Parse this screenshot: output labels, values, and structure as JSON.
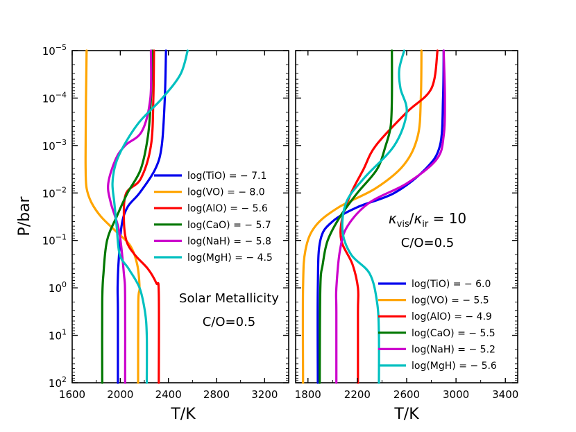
{
  "figure": {
    "ylabel": "P/bar",
    "xlabel": "T/K"
  },
  "chart_data": [
    {
      "type": "line",
      "panel": "left",
      "title": "",
      "xlabel": "T/K",
      "ylabel": "P/bar",
      "xlim": [
        1600,
        3400
      ],
      "ylim_log10": [
        2,
        -5
      ],
      "x_ticks": [
        1600,
        2000,
        2400,
        2800,
        3200
      ],
      "x_tick_labels": [
        "1600",
        "2000",
        "2400",
        "2800",
        "3200"
      ],
      "y_ticks_log10": [
        -5,
        -4,
        -3,
        -2,
        -1,
        0,
        1,
        2
      ],
      "y_tick_labels": [
        {
          "base": "10",
          "exp": "−5"
        },
        {
          "base": "10",
          "exp": "−4"
        },
        {
          "base": "10",
          "exp": "−3"
        },
        {
          "base": "10",
          "exp": "−2"
        },
        {
          "base": "10",
          "exp": "−1"
        },
        {
          "base": "10",
          "exp": "0"
        },
        {
          "base": "10",
          "exp": "1"
        },
        {
          "base": "10",
          "exp": "2"
        }
      ],
      "legend_position": "right-middle",
      "annotations": [
        "Solar Metallicity",
        "C/O=0.5"
      ],
      "series": [
        {
          "name": "log(TiO) = − 7.1",
          "color": "#0000ee",
          "points": [
            [
              2380,
              -5
            ],
            [
              2370,
              -4
            ],
            [
              2345,
              -3
            ],
            [
              2290,
              -2.5
            ],
            [
              2160,
              -2
            ],
            [
              2060,
              -1.7
            ],
            [
              2010,
              -1.3
            ],
            [
              1985,
              -0.5
            ],
            [
              1978,
              0
            ],
            [
              1980,
              0.5
            ],
            [
              1980,
              2
            ]
          ]
        },
        {
          "name": "log(VO) = − 8.0",
          "color": "#ffa500",
          "points": [
            [
              1720,
              -5
            ],
            [
              1715,
              -4
            ],
            [
              1712,
              -3
            ],
            [
              1712,
              -2.5
            ],
            [
              1720,
              -2.1
            ],
            [
              1760,
              -1.8
            ],
            [
              1840,
              -1.5
            ],
            [
              1960,
              -1.2
            ],
            [
              2080,
              -0.9
            ],
            [
              2140,
              -0.5
            ],
            [
              2160,
              0
            ],
            [
              2150,
              0.3
            ],
            [
              2148,
              2
            ]
          ]
        },
        {
          "name": "log(AlO) = − 5.6",
          "color": "#ff0000",
          "points": [
            [
              2280,
              -5
            ],
            [
              2275,
              -4
            ],
            [
              2255,
              -3
            ],
            [
              2170,
              -2.3
            ],
            [
              2050,
              -2
            ],
            [
              2030,
              -1.5
            ],
            [
              2050,
              -1
            ],
            [
              2120,
              -0.7
            ],
            [
              2230,
              -0.4
            ],
            [
              2300,
              -0.1
            ],
            [
              2320,
              0.1
            ],
            [
              2320,
              2
            ]
          ]
        },
        {
          "name": "log(CaO) = − 5.7",
          "color": "#007700",
          "points": [
            [
              2265,
              -5
            ],
            [
              2255,
              -4
            ],
            [
              2230,
              -3.2
            ],
            [
              2170,
              -2.5
            ],
            [
              2060,
              -2
            ],
            [
              1970,
              -1.5
            ],
            [
              1890,
              -1
            ],
            [
              1860,
              -0.3
            ],
            [
              1850,
              0.3
            ],
            [
              1850,
              2
            ]
          ]
        },
        {
          "name": "log(NaH) = − 5.8",
          "color": "#cc00cc",
          "points": [
            [
              2255,
              -5
            ],
            [
              2250,
              -4
            ],
            [
              2180,
              -3.3
            ],
            [
              2040,
              -3
            ],
            [
              1960,
              -2.7
            ],
            [
              1900,
              -2.2
            ],
            [
              1920,
              -1.8
            ],
            [
              1990,
              -1.2
            ],
            [
              2030,
              -0.3
            ],
            [
              2040,
              0.2
            ],
            [
              2040,
              2
            ]
          ]
        },
        {
          "name": "log(MgH) = − 4.5",
          "color": "#00c0c0",
          "points": [
            [
              2560,
              -5
            ],
            [
              2500,
              -4.5
            ],
            [
              2350,
              -4
            ],
            [
              2160,
              -3.5
            ],
            [
              2030,
              -3
            ],
            [
              1960,
              -2.6
            ],
            [
              1935,
              -2.2
            ],
            [
              1950,
              -1.8
            ],
            [
              1970,
              -1.3
            ],
            [
              1995,
              -0.7
            ],
            [
              2070,
              -0.4
            ],
            [
              2160,
              0
            ],
            [
              2205,
              0.5
            ],
            [
              2220,
              1
            ],
            [
              2220,
              2
            ]
          ]
        }
      ]
    },
    {
      "type": "line",
      "panel": "right",
      "title": "",
      "xlabel": "T/K",
      "ylabel": "",
      "xlim": [
        1700,
        3500
      ],
      "ylim_log10": [
        2,
        -5
      ],
      "x_ticks": [
        1800,
        2200,
        2600,
        3000,
        3400
      ],
      "x_tick_labels": [
        "1800",
        "2200",
        "2600",
        "3000",
        "3400"
      ],
      "y_ticks_log10": [
        -5,
        -4,
        -3,
        -2,
        -1,
        0,
        1,
        2
      ],
      "legend_position": "lower-right",
      "annotations": [
        "κvis/κir = 10",
        "C/O=0.5"
      ],
      "annotation_parts": {
        "kappa": "κ",
        "vis": "vis",
        "slash": "/",
        "ir": "ir",
        "eq": " = 10"
      },
      "series": [
        {
          "name": "log(TiO) = − 6.0",
          "color": "#0000ee",
          "points": [
            [
              2900,
              -5
            ],
            [
              2895,
              -4
            ],
            [
              2870,
              -3
            ],
            [
              2750,
              -2.5
            ],
            [
              2500,
              -2
            ],
            [
              2200,
              -1.7
            ],
            [
              2000,
              -1.4
            ],
            [
              1900,
              -1
            ],
            [
              1880,
              0
            ],
            [
              1880,
              2
            ]
          ]
        },
        {
          "name": "log(VO) = − 5.5",
          "color": "#ffa500",
          "points": [
            [
              2720,
              -5
            ],
            [
              2715,
              -4
            ],
            [
              2690,
              -3.2
            ],
            [
              2580,
              -2.6
            ],
            [
              2350,
              -2.1
            ],
            [
              2050,
              -1.7
            ],
            [
              1860,
              -1.3
            ],
            [
              1780,
              -0.8
            ],
            [
              1760,
              0
            ],
            [
              1760,
              2
            ]
          ]
        },
        {
          "name": "log(AlO) = − 4.9",
          "color": "#ff0000",
          "points": [
            [
              2850,
              -5
            ],
            [
              2800,
              -4.2
            ],
            [
              2600,
              -3.7
            ],
            [
              2350,
              -3
            ],
            [
              2250,
              -2.5
            ],
            [
              2150,
              -2
            ],
            [
              2080,
              -1.5
            ],
            [
              2070,
              -1
            ],
            [
              2160,
              -0.5
            ],
            [
              2205,
              0
            ],
            [
              2205,
              0.5
            ],
            [
              2205,
              2
            ]
          ]
        },
        {
          "name": "log(CaO) = − 5.5",
          "color": "#007700",
          "points": [
            [
              2480,
              -5
            ],
            [
              2480,
              -4
            ],
            [
              2470,
              -3.4
            ],
            [
              2430,
              -3
            ],
            [
              2360,
              -2.5
            ],
            [
              2200,
              -2
            ],
            [
              2060,
              -1.5
            ],
            [
              1960,
              -1
            ],
            [
              1920,
              -0.5
            ],
            [
              1900,
              0
            ],
            [
              1895,
              2
            ]
          ]
        },
        {
          "name": "log(NaH) = − 5.2",
          "color": "#cc00cc",
          "points": [
            [
              2900,
              -5
            ],
            [
              2910,
              -4
            ],
            [
              2900,
              -3.2
            ],
            [
              2840,
              -2.7
            ],
            [
              2600,
              -2.2
            ],
            [
              2300,
              -1.8
            ],
            [
              2120,
              -1.3
            ],
            [
              2060,
              -0.8
            ],
            [
              2030,
              0
            ],
            [
              2030,
              0.5
            ],
            [
              2030,
              2
            ]
          ]
        },
        {
          "name": "log(MgH) = − 5.6",
          "color": "#00c0c0",
          "points": [
            [
              2580,
              -5
            ],
            [
              2540,
              -4.6
            ],
            [
              2550,
              -4.2
            ],
            [
              2600,
              -3.7
            ],
            [
              2500,
              -3
            ],
            [
              2250,
              -2.3
            ],
            [
              2110,
              -1.8
            ],
            [
              2080,
              -1.2
            ],
            [
              2150,
              -0.7
            ],
            [
              2300,
              -0.3
            ],
            [
              2360,
              0.3
            ],
            [
              2375,
              1
            ],
            [
              2375,
              2
            ]
          ]
        }
      ]
    }
  ]
}
